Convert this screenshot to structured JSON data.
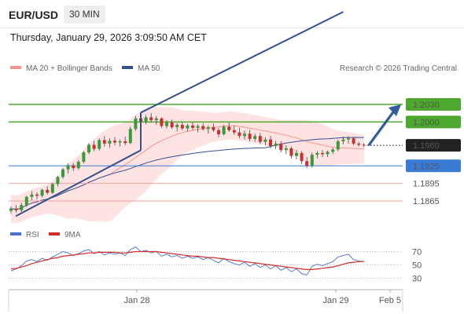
{
  "header": {
    "symbol": "EUR/USD",
    "timeframe": "30 MIN"
  },
  "timestamp": "Thursday, January 29, 2026 3:09:50 AM CET",
  "chart_data": [
    {
      "type": "candlestick",
      "legend": [
        {
          "name": "MA 20 + Bollinger Bands",
          "color": "#f4958f"
        },
        {
          "name": "MA 50",
          "color": "#36508e"
        }
      ],
      "copyright": "Research © 2026 Trading Central",
      "levels": [
        {
          "label": "1.2030",
          "value": 1.203,
          "kind": "resistance",
          "color": "#4ea72e"
        },
        {
          "label": "1.2000",
          "value": 1.2,
          "kind": "resistance",
          "color": "#4ea72e"
        },
        {
          "label": "1.1960",
          "value": 1.196,
          "kind": "current",
          "color": "#222222"
        },
        {
          "label": "1.1925",
          "value": 1.1925,
          "kind": "pivot",
          "color": "#3a7bd5"
        },
        {
          "label": "1.1895",
          "value": 1.1895,
          "kind": "support",
          "color": "#d23b3b"
        },
        {
          "label": "1.1865",
          "value": 1.1865,
          "kind": "support",
          "color": "#d23b3b"
        }
      ],
      "x_ticks": [
        "Jan 28",
        "Jan 29",
        "Feb 5"
      ],
      "candles": [
        [
          1.1848,
          1.1856,
          1.1843,
          1.1852
        ],
        [
          1.1852,
          1.1858,
          1.1845,
          1.1849
        ],
        [
          1.1849,
          1.1862,
          1.1846,
          1.1858
        ],
        [
          1.1858,
          1.1874,
          1.1855,
          1.1872
        ],
        [
          1.1872,
          1.1882,
          1.1866,
          1.1876
        ],
        [
          1.1876,
          1.188,
          1.1868,
          1.1874
        ],
        [
          1.1874,
          1.1886,
          1.1871,
          1.1884
        ],
        [
          1.1884,
          1.189,
          1.1876,
          1.1879
        ],
        [
          1.1879,
          1.1896,
          1.1877,
          1.1894
        ],
        [
          1.1894,
          1.1908,
          1.189,
          1.1906
        ],
        [
          1.1906,
          1.1922,
          1.1903,
          1.1919
        ],
        [
          1.1919,
          1.1929,
          1.1912,
          1.1926
        ],
        [
          1.1926,
          1.193,
          1.1916,
          1.1921
        ],
        [
          1.1921,
          1.1935,
          1.1918,
          1.1932
        ],
        [
          1.1932,
          1.195,
          1.1929,
          1.1948
        ],
        [
          1.1948,
          1.1964,
          1.1945,
          1.1961
        ],
        [
          1.1961,
          1.1968,
          1.195,
          1.1954
        ],
        [
          1.1954,
          1.1972,
          1.1951,
          1.1969
        ],
        [
          1.1969,
          1.1976,
          1.1958,
          1.1963
        ],
        [
          1.1963,
          1.1972,
          1.1956,
          1.1968
        ],
        [
          1.1968,
          1.1974,
          1.196,
          1.1965
        ],
        [
          1.1965,
          1.197,
          1.1958,
          1.1967
        ],
        [
          1.1967,
          1.1975,
          1.196,
          1.1964
        ],
        [
          1.1964,
          1.1992,
          1.1962,
          1.1988
        ],
        [
          1.1988,
          1.201,
          1.1985,
          1.2006
        ],
        [
          1.2006,
          1.2016,
          1.1998,
          1.2001
        ],
        [
          1.2001,
          1.2012,
          1.1996,
          1.2008
        ],
        [
          1.2008,
          1.2015,
          1.1999,
          1.2003
        ],
        [
          1.2003,
          1.201,
          1.1995,
          1.2006
        ],
        [
          1.2006,
          1.2008,
          1.199,
          1.1993
        ],
        [
          1.1993,
          1.2003,
          1.1989,
          1.1999
        ],
        [
          1.1999,
          1.2004,
          1.1988,
          1.1991
        ],
        [
          1.1991,
          1.1998,
          1.1984,
          1.1995
        ],
        [
          1.1995,
          1.2,
          1.1986,
          1.1989
        ],
        [
          1.1989,
          1.1997,
          1.1984,
          1.1994
        ],
        [
          1.1994,
          1.1999,
          1.1986,
          1.199
        ],
        [
          1.199,
          1.1996,
          1.1982,
          1.1993
        ],
        [
          1.1993,
          1.1998,
          1.1985,
          1.1988
        ],
        [
          1.1988,
          1.1994,
          1.198,
          1.1991
        ],
        [
          1.1991,
          1.1997,
          1.1983,
          1.1986
        ],
        [
          1.1986,
          1.199,
          1.1974,
          1.1979
        ],
        [
          1.1979,
          1.1995,
          1.1977,
          1.1992
        ],
        [
          1.1992,
          1.1999,
          1.1983,
          1.1986
        ],
        [
          1.1986,
          1.1994,
          1.1978,
          1.1982
        ],
        [
          1.1982,
          1.199,
          1.1972,
          1.1976
        ],
        [
          1.1976,
          1.1985,
          1.197,
          1.198
        ],
        [
          1.198,
          1.1986,
          1.1967,
          1.1971
        ],
        [
          1.1971,
          1.198,
          1.1966,
          1.1976
        ],
        [
          1.1976,
          1.1981,
          1.1962,
          1.1966
        ],
        [
          1.1966,
          1.1974,
          1.196,
          1.197
        ],
        [
          1.197,
          1.1976,
          1.1955,
          1.1959
        ],
        [
          1.1959,
          1.1968,
          1.1954,
          1.1963
        ],
        [
          1.1963,
          1.1967,
          1.1948,
          1.1952
        ],
        [
          1.1952,
          1.196,
          1.1945,
          1.1955
        ],
        [
          1.1955,
          1.1958,
          1.1938,
          1.1942
        ],
        [
          1.1942,
          1.1952,
          1.1936,
          1.1947
        ],
        [
          1.1947,
          1.195,
          1.1928,
          1.1933
        ],
        [
          1.1933,
          1.194,
          1.1921,
          1.1925
        ],
        [
          1.1925,
          1.1948,
          1.1922,
          1.1944
        ],
        [
          1.1944,
          1.195,
          1.1938,
          1.1947
        ],
        [
          1.1947,
          1.1952,
          1.194,
          1.1945
        ],
        [
          1.1945,
          1.1951,
          1.194,
          1.1949
        ],
        [
          1.1949,
          1.1956,
          1.1945,
          1.1953
        ],
        [
          1.1953,
          1.197,
          1.195,
          1.1967
        ],
        [
          1.1967,
          1.1975,
          1.1962,
          1.197
        ],
        [
          1.197,
          1.1976,
          1.1963,
          1.1972
        ],
        [
          1.1972,
          1.1974,
          1.196,
          1.1963
        ],
        [
          1.1963,
          1.1966,
          1.1958,
          1.1961
        ],
        [
          1.1961,
          1.1964,
          1.1957,
          1.196
        ]
      ],
      "projection": {
        "from": 1.196,
        "to": 1.203
      }
    },
    {
      "type": "line",
      "name": "RSI",
      "legend": [
        {
          "name": "RSI",
          "color": "#4a6fd0"
        },
        {
          "name": "9MA",
          "color": "#d62b2b"
        }
      ],
      "y_ticks": [
        "70",
        "50",
        "30"
      ],
      "ylim": [
        20,
        80
      ],
      "series": [
        {
          "name": "RSI",
          "values": [
            41,
            44,
            49,
            56,
            58,
            55,
            60,
            57,
            62,
            66,
            70,
            68,
            64,
            67,
            71,
            73,
            67,
            70,
            65,
            68,
            66,
            68,
            64,
            73,
            77,
            70,
            72,
            68,
            70,
            63,
            66,
            62,
            64,
            60,
            63,
            60,
            62,
            58,
            61,
            57,
            53,
            60,
            55,
            52,
            50,
            54,
            48,
            52,
            46,
            50,
            44,
            49,
            42,
            46,
            40,
            44,
            37,
            35,
            48,
            51,
            49,
            52,
            55,
            62,
            64,
            66,
            58,
            56,
            55
          ]
        },
        {
          "name": "9MA",
          "values": [
            44,
            45,
            47,
            49,
            52,
            54,
            56,
            58,
            60,
            61,
            63,
            64,
            65,
            66,
            67,
            68,
            68,
            69,
            69,
            69,
            69,
            68,
            68,
            69,
            70,
            70,
            70,
            70,
            70,
            69,
            68,
            67,
            66,
            65,
            64,
            63,
            63,
            62,
            61,
            61,
            60,
            59,
            58,
            57,
            56,
            55,
            54,
            53,
            52,
            51,
            50,
            49,
            48,
            47,
            46,
            45,
            44,
            43,
            43,
            44,
            45,
            46,
            47,
            49,
            51,
            53,
            54,
            55,
            55
          ]
        }
      ]
    }
  ]
}
